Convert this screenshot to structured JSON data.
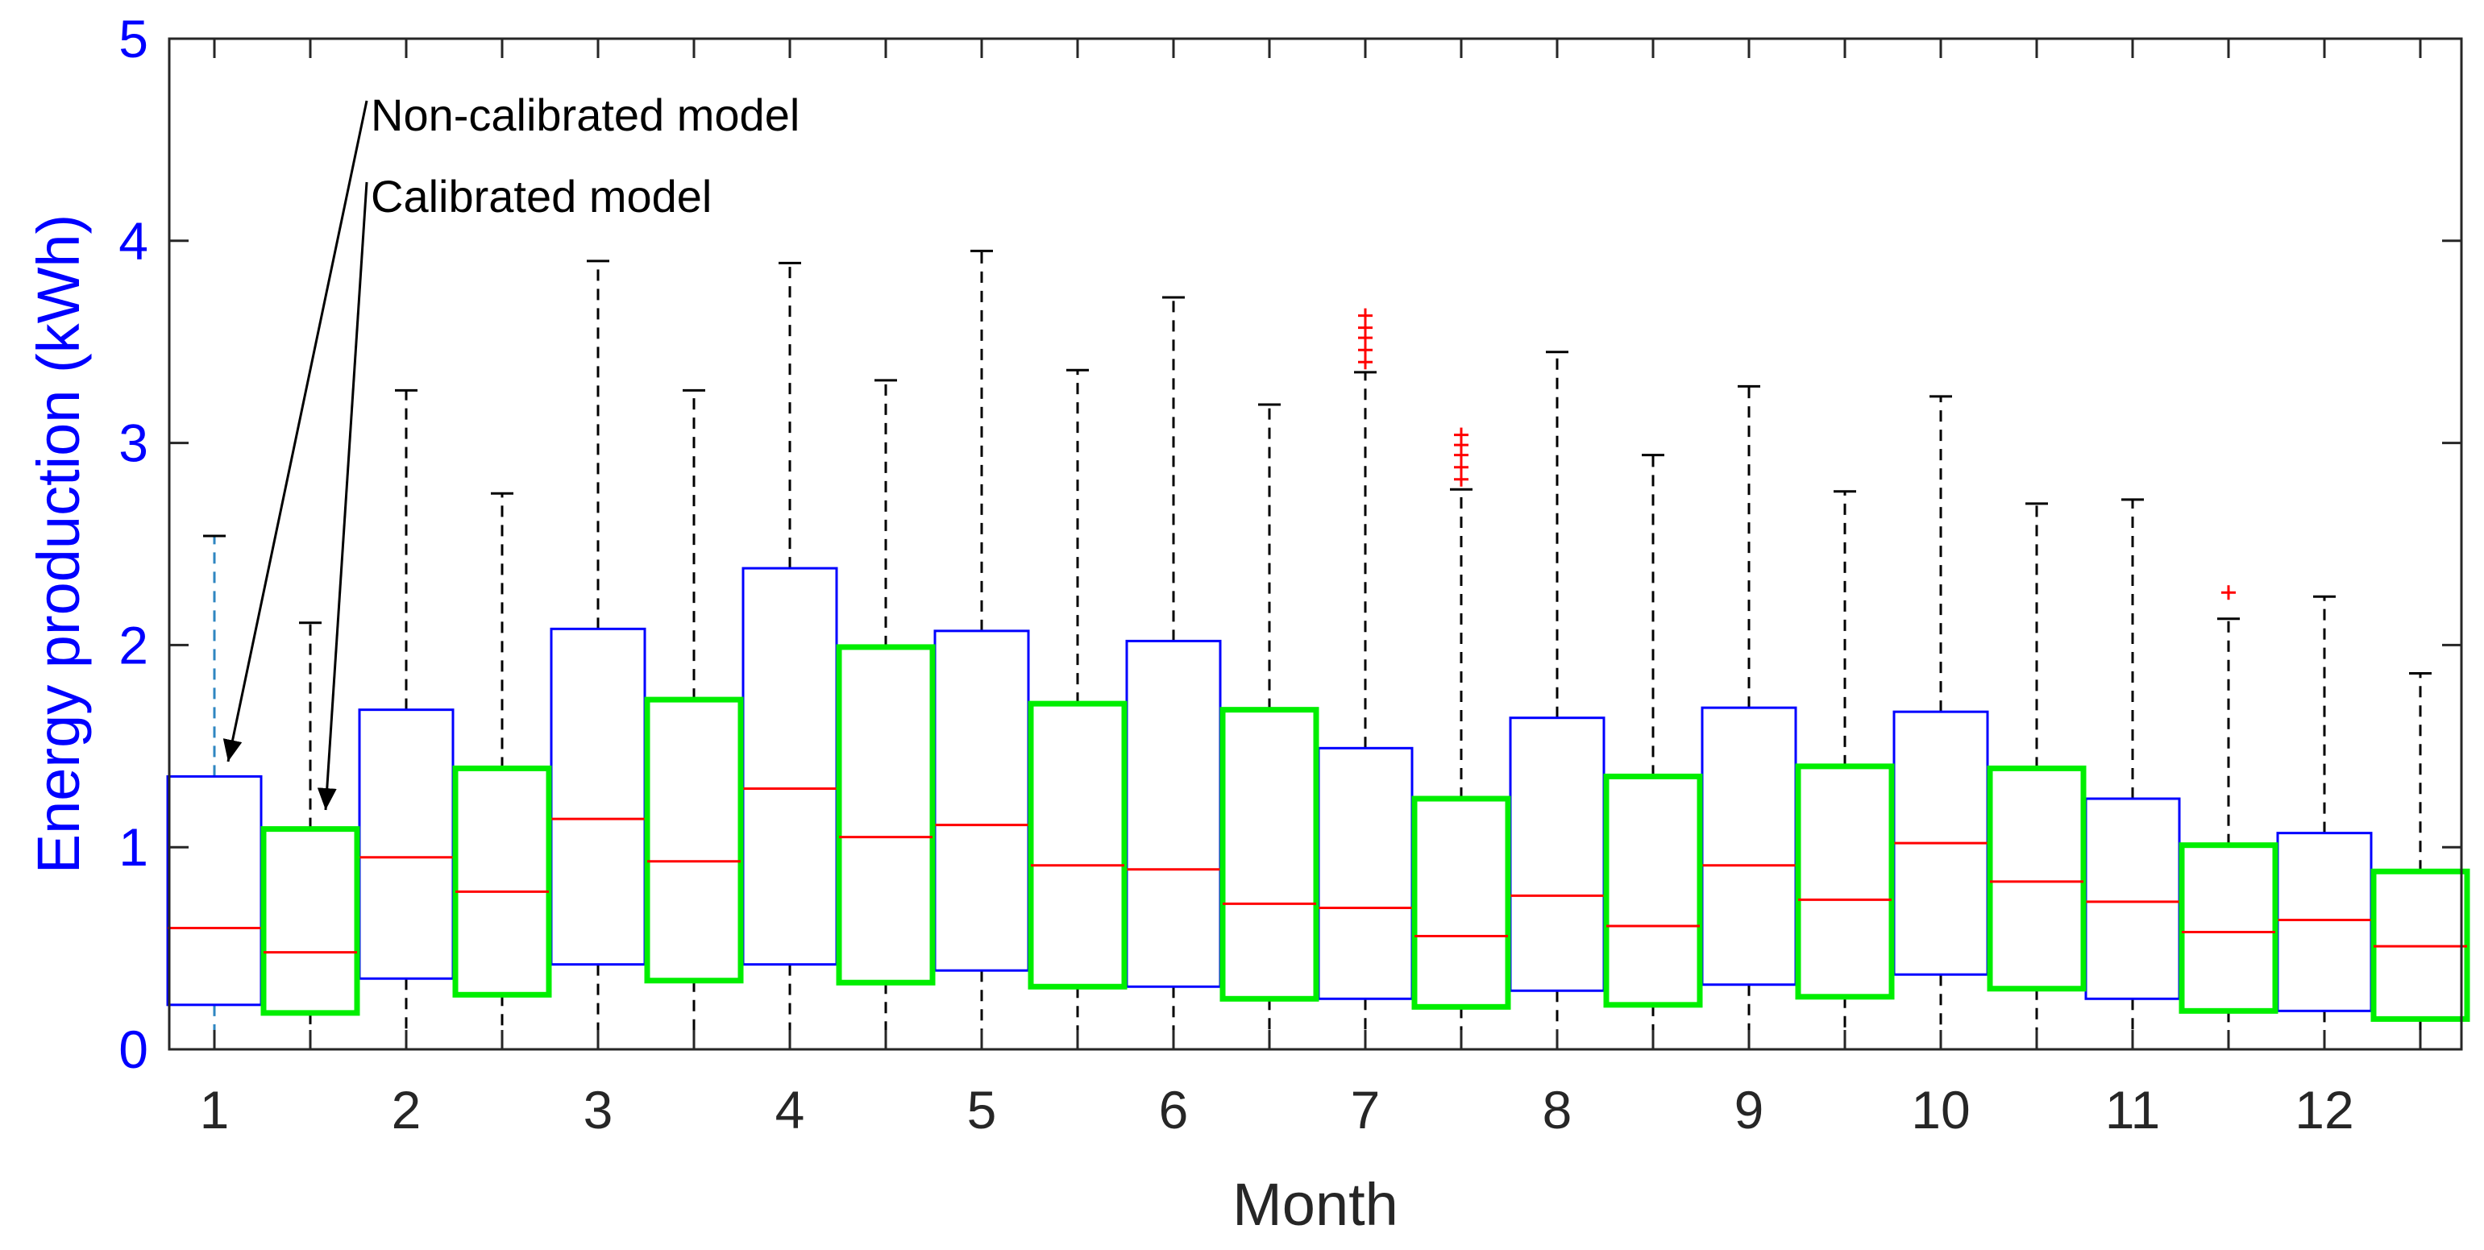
{
  "chart_data": {
    "type": "boxplot",
    "title": "",
    "xlabel": "Month",
    "ylabel": "Energy production (kWh)",
    "ylim": [
      0,
      5
    ],
    "yticks": [
      "0",
      "1",
      "2",
      "3",
      "4",
      "5"
    ],
    "categories": [
      "1",
      "2",
      "3",
      "4",
      "5",
      "6",
      "7",
      "8",
      "9",
      "10",
      "11",
      "12"
    ],
    "series": [
      {
        "name": "Non-calibrated model",
        "color": "#0000ff",
        "boxes": [
          {
            "q1": 0.22,
            "median": 0.6,
            "q3": 1.35,
            "whisker_low": 0.0,
            "whisker_high": 2.54,
            "outliers": []
          },
          {
            "q1": 0.35,
            "median": 0.95,
            "q3": 1.68,
            "whisker_low": 0.0,
            "whisker_high": 3.26,
            "outliers": []
          },
          {
            "q1": 0.42,
            "median": 1.14,
            "q3": 2.08,
            "whisker_low": 0.0,
            "whisker_high": 3.9,
            "outliers": []
          },
          {
            "q1": 0.42,
            "median": 1.29,
            "q3": 2.38,
            "whisker_low": 0.0,
            "whisker_high": 3.89,
            "outliers": []
          },
          {
            "q1": 0.39,
            "median": 1.11,
            "q3": 2.07,
            "whisker_low": 0.0,
            "whisker_high": 3.95,
            "outliers": []
          },
          {
            "q1": 0.31,
            "median": 0.89,
            "q3": 2.02,
            "whisker_low": 0.0,
            "whisker_high": 3.72,
            "outliers": []
          },
          {
            "q1": 0.25,
            "median": 0.7,
            "q3": 1.49,
            "whisker_low": 0.0,
            "whisker_high": 3.35,
            "outliers": [
              3.4,
              3.46,
              3.52,
              3.57,
              3.63
            ]
          },
          {
            "q1": 0.29,
            "median": 0.76,
            "q3": 1.64,
            "whisker_low": 0.0,
            "whisker_high": 3.45,
            "outliers": []
          },
          {
            "q1": 0.32,
            "median": 0.91,
            "q3": 1.69,
            "whisker_low": 0.0,
            "whisker_high": 3.28,
            "outliers": []
          },
          {
            "q1": 0.37,
            "median": 1.02,
            "q3": 1.67,
            "whisker_low": 0.0,
            "whisker_high": 3.23,
            "outliers": []
          },
          {
            "q1": 0.25,
            "median": 0.73,
            "q3": 1.24,
            "whisker_low": 0.0,
            "whisker_high": 2.72,
            "outliers": []
          },
          {
            "q1": 0.19,
            "median": 0.64,
            "q3": 1.07,
            "whisker_low": 0.0,
            "whisker_high": 2.24,
            "outliers": []
          }
        ]
      },
      {
        "name": "Calibrated model",
        "color": "#00ee00",
        "boxes": [
          {
            "q1": 0.18,
            "median": 0.48,
            "q3": 1.09,
            "whisker_low": 0.0,
            "whisker_high": 2.11,
            "outliers": []
          },
          {
            "q1": 0.27,
            "median": 0.78,
            "q3": 1.39,
            "whisker_low": 0.0,
            "whisker_high": 2.75,
            "outliers": []
          },
          {
            "q1": 0.34,
            "median": 0.93,
            "q3": 1.73,
            "whisker_low": 0.0,
            "whisker_high": 3.26,
            "outliers": []
          },
          {
            "q1": 0.33,
            "median": 1.05,
            "q3": 1.99,
            "whisker_low": 0.0,
            "whisker_high": 3.31,
            "outliers": []
          },
          {
            "q1": 0.31,
            "median": 0.91,
            "q3": 1.71,
            "whisker_low": 0.0,
            "whisker_high": 3.36,
            "outliers": []
          },
          {
            "q1": 0.25,
            "median": 0.72,
            "q3": 1.68,
            "whisker_low": 0.0,
            "whisker_high": 3.19,
            "outliers": []
          },
          {
            "q1": 0.21,
            "median": 0.56,
            "q3": 1.24,
            "whisker_low": 0.0,
            "whisker_high": 2.77,
            "outliers": [
              2.82,
              2.88,
              2.94,
              2.99,
              3.04
            ]
          },
          {
            "q1": 0.22,
            "median": 0.61,
            "q3": 1.35,
            "whisker_low": 0.0,
            "whisker_high": 2.94,
            "outliers": []
          },
          {
            "q1": 0.26,
            "median": 0.74,
            "q3": 1.4,
            "whisker_low": 0.0,
            "whisker_high": 2.76,
            "outliers": []
          },
          {
            "q1": 0.3,
            "median": 0.83,
            "q3": 1.39,
            "whisker_low": 0.0,
            "whisker_high": 2.7,
            "outliers": []
          },
          {
            "q1": 0.19,
            "median": 0.58,
            "q3": 1.01,
            "whisker_low": 0.0,
            "whisker_high": 2.13,
            "outliers": [
              2.26
            ]
          },
          {
            "q1": 0.15,
            "median": 0.51,
            "q3": 0.88,
            "whisker_low": 0.0,
            "whisker_high": 1.86,
            "outliers": []
          }
        ]
      }
    ],
    "annotations": [
      {
        "text": "Non-calibrated model",
        "points_to": "Month 1 non-calibrated box"
      },
      {
        "text": "Calibrated model",
        "points_to": "Month 1 calibrated box"
      }
    ],
    "colors": {
      "axis_label": "#0000ff",
      "tick_label": "#0000ff",
      "x_tick_label": "#262626",
      "median": "#ff0000",
      "whisker": "#000000",
      "first_whisker": "#2e86c1",
      "outlier": "#ff0000"
    }
  }
}
